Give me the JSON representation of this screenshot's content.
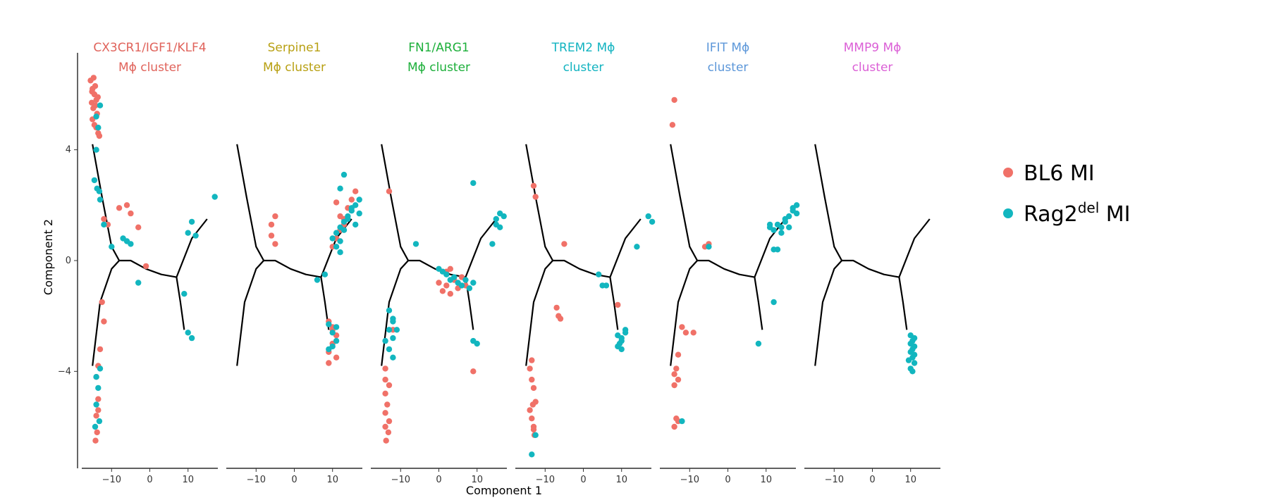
{
  "chart_data": {
    "type": "scatter",
    "xlabel": "Component 1",
    "ylabel": "Component 2",
    "xlim": [
      -18,
      18
    ],
    "ylim": [
      -7.5,
      7.5
    ],
    "x_ticks": [
      -10,
      0,
      10
    ],
    "x_tick_labels": [
      "−10",
      "0",
      "10"
    ],
    "y_ticks": [
      -4,
      0,
      4
    ],
    "y_tick_labels": [
      "−4",
      "0",
      "4"
    ],
    "grid": false,
    "legend_position": "right",
    "legend": [
      {
        "base": "BL6 MI",
        "sup": "",
        "tail": "",
        "color": "#F07168"
      },
      {
        "base": "Rag2",
        "sup": "del",
        "tail": " MI",
        "color": "#12B6BF"
      }
    ],
    "trajectory": [
      [
        [
          -15,
          4.2
        ],
        [
          -12.5,
          2.3
        ],
        [
          -10,
          0.5
        ],
        [
          -8,
          0
        ]
      ],
      [
        [
          -15,
          -3.8
        ],
        [
          -13,
          -1.5
        ],
        [
          -10,
          -0.3
        ],
        [
          -8,
          0
        ]
      ],
      [
        [
          -8,
          0
        ],
        [
          -5,
          0
        ],
        [
          -1,
          -0.3
        ],
        [
          3,
          -0.5
        ],
        [
          7,
          -0.6
        ]
      ],
      [
        [
          7,
          -0.6
        ],
        [
          11,
          0.8
        ],
        [
          15,
          1.5
        ]
      ],
      [
        [
          7,
          -0.6
        ],
        [
          8,
          -1.5
        ],
        [
          9,
          -2.5
        ]
      ]
    ],
    "panels": [
      {
        "title": [
          "CX3CR1/IGF1/KLF4",
          "Mϕ cluster"
        ],
        "color": "#E0635B",
        "series": [
          {
            "name": "BL6 MI",
            "x": [
              -15.5,
              -15,
              -14.5,
              -14,
              -15.2,
              -14.8,
              -14.2,
              -13.8,
              -15,
              -14.5,
              -13.5,
              -14,
              -13.2,
              -15.1,
              -14.3,
              -13.6,
              -14.7,
              -12,
              -11,
              -8,
              -6,
              -5,
              -3,
              -1,
              -12.5,
              -12,
              -13,
              -13.5,
              -14,
              -13.5,
              -14,
              -13.8,
              -14.2,
              -13.5
            ],
            "y": [
              6.5,
              6.2,
              6,
              5.8,
              5.7,
              5.5,
              5.6,
              5.3,
              5.1,
              4.9,
              4.6,
              4.8,
              4.5,
              6.1,
              6.3,
              5.9,
              6.6,
              1.5,
              1.3,
              1.9,
              2.0,
              1.7,
              1.2,
              -0.2,
              -1.5,
              -2.2,
              -3.2,
              -3.8,
              -4.2,
              -5.0,
              -5.6,
              -6.2,
              -6.5,
              -5.4
            ]
          },
          {
            "name": "Rag2del MI",
            "x": [
              -14,
              -13.5,
              -13,
              -14,
              -13.8,
              -13,
              -14.5,
              -13.2,
              -12,
              -10,
              -7,
              -6,
              -5,
              -3,
              10,
              11,
              12,
              17,
              9,
              10,
              11,
              -13,
              -14,
              -13.5,
              -14,
              -13.2,
              -14.3
            ],
            "y": [
              5.2,
              4.8,
              5.6,
              4.0,
              2.6,
              2.2,
              2.9,
              2.5,
              1.3,
              0.5,
              0.8,
              0.7,
              0.6,
              -0.8,
              1.0,
              1.4,
              0.9,
              2.3,
              -1.2,
              -2.6,
              -2.8,
              -3.9,
              -4.2,
              -4.6,
              -5.2,
              -5.8,
              -6.0
            ]
          }
        ]
      },
      {
        "title": [
          "Serpine1",
          "Mϕ cluster"
        ],
        "color": "#B8A013",
        "series": [
          {
            "name": "BL6 MI",
            "x": [
              -6,
              -5,
              -6,
              -5,
              10,
              11,
              12,
              13,
              14,
              15,
              16,
              11,
              12,
              13,
              9,
              10,
              11,
              10,
              9,
              11,
              10,
              9
            ],
            "y": [
              1.3,
              1.6,
              0.9,
              0.6,
              0.5,
              0.8,
              1.1,
              1.5,
              1.9,
              2.2,
              2.5,
              2.1,
              1.6,
              1.3,
              -2.2,
              -2.5,
              -2.7,
              -3,
              -3.3,
              -3.5,
              -2.4,
              -3.7
            ]
          },
          {
            "name": "Rag2del MI",
            "x": [
              10,
              11,
              12,
              13,
              14,
              15,
              16,
              17,
              11,
              12,
              13,
              14,
              15,
              16,
              17,
              12,
              13,
              9,
              10,
              11,
              10,
              9,
              11,
              6,
              8,
              12
            ],
            "y": [
              0.8,
              1.0,
              1.2,
              1.4,
              1.6,
              1.8,
              2.0,
              2.2,
              0.5,
              0.7,
              1.1,
              1.5,
              1.9,
              1.3,
              1.7,
              2.6,
              3.1,
              -2.3,
              -2.6,
              -2.9,
              -3.1,
              -3.2,
              -2.4,
              -0.7,
              -0.5,
              0.3
            ]
          }
        ]
      },
      {
        "title": [
          "FN1/ARG1",
          "Mϕ cluster"
        ],
        "color": "#1CAF3A",
        "series": [
          {
            "name": "BL6 MI",
            "x": [
              -13,
              -14,
              -13,
              -14,
              -13.5,
              -14,
              -13,
              -14,
              -13.2,
              -13.8,
              -12,
              -14,
              0,
              1,
              2,
              3,
              4,
              5,
              6,
              7,
              2,
              3,
              9
            ],
            "y": [
              2.5,
              -4.3,
              -4.5,
              -4.8,
              -5.2,
              -5.5,
              -5.8,
              -6.0,
              -6.2,
              -6.5,
              -2.5,
              -3.9,
              -0.8,
              -1.1,
              -0.9,
              -1.2,
              -0.7,
              -1.0,
              -0.6,
              -0.9,
              -0.4,
              -0.3,
              -4
            ]
          },
          {
            "name": "Rag2del MI",
            "x": [
              -13,
              -12,
              -11,
              -12,
              -13,
              -14,
              -13,
              -12,
              -6,
              0,
              2,
              3,
              4,
              5,
              6,
              7,
              8,
              9,
              1,
              15,
              16,
              17,
              16,
              15,
              14,
              9,
              10,
              9,
              -12
            ],
            "y": [
              -1.8,
              -2.1,
              -2.5,
              -2.8,
              -3.2,
              -2.9,
              -2.5,
              -2.2,
              0.6,
              -0.3,
              -0.5,
              -0.7,
              -0.6,
              -0.8,
              -0.9,
              -0.7,
              -1.0,
              -0.8,
              -0.4,
              1.5,
              1.7,
              1.6,
              1.2,
              1.3,
              0.6,
              2.8,
              -3.0,
              -2.9,
              -3.5
            ]
          }
        ]
      },
      {
        "title": [
          "TREM2 Mϕ",
          "cluster"
        ],
        "color": "#12B3C0",
        "series": [
          {
            "name": "BL6 MI",
            "x": [
              -13,
              -12.5,
              -13.5,
              -13,
              -12.5,
              -14,
              -13.5,
              -13,
              -12.8,
              -14,
              -13.5,
              -13,
              -7,
              -6,
              -6.5,
              -13.2,
              -5,
              9
            ],
            "y": [
              2.7,
              2.3,
              -4.3,
              -4.6,
              -5.1,
              -5.4,
              -5.7,
              -6.0,
              -6.3,
              -3.9,
              -3.6,
              -6.1,
              -1.7,
              -2.1,
              -2.0,
              -5.2,
              0.6,
              -1.6
            ]
          },
          {
            "name": "Rag2del MI",
            "x": [
              -13.5,
              -12.5,
              4,
              5,
              6,
              9,
              10,
              11,
              10,
              9,
              11,
              10,
              14,
              17,
              18,
              9.5
            ],
            "y": [
              -7.0,
              -6.3,
              -0.5,
              -0.9,
              -0.9,
              -2.7,
              -2.9,
              -2.6,
              -3.2,
              -3.1,
              -2.5,
              -2.8,
              0.5,
              1.6,
              1.4,
              -3.0
            ]
          }
        ]
      },
      {
        "title": [
          "IFIT Mϕ",
          "cluster"
        ],
        "color": "#5C97D9",
        "series": [
          {
            "name": "BL6 MI",
            "x": [
              -14,
              -14.5,
              -12,
              -11,
              -13,
              -13.5,
              -14,
              -13,
              -14,
              -13.5,
              -14,
              -13,
              -9,
              -6,
              -5
            ],
            "y": [
              5.8,
              4.9,
              -2.4,
              -2.6,
              -3.4,
              -3.9,
              -4.1,
              -4.3,
              -4.5,
              -5.7,
              -6.0,
              -5.8,
              -2.6,
              0.5,
              0.6
            ]
          },
          {
            "name": "Rag2del MI",
            "x": [
              -5,
              11,
              12,
              13,
              14,
              15,
              16,
              17,
              18,
              12,
              13,
              11,
              14,
              15,
              16,
              17,
              18,
              8,
              12,
              -12
            ],
            "y": [
              0.5,
              1.2,
              1.1,
              1.3,
              1.2,
              1.4,
              1.6,
              1.8,
              2.0,
              0.4,
              0.4,
              1.3,
              1.0,
              1.5,
              1.2,
              1.9,
              1.7,
              -3.0,
              -1.5,
              -5.8
            ]
          }
        ]
      },
      {
        "title": [
          "MMP9 Mϕ",
          "cluster"
        ],
        "color": "#DB5FD6",
        "series": [
          {
            "name": "BL6 MI",
            "x": [],
            "y": []
          },
          {
            "name": "Rag2del MI",
            "x": [
              10,
              10.5,
              11,
              10,
              10.5,
              11,
              10,
              10.5,
              11,
              10,
              9.5,
              10.5,
              11
            ],
            "y": [
              -2.7,
              -2.9,
              -3.1,
              -3.3,
              -3.5,
              -3.7,
              -3.9,
              -4.0,
              -2.8,
              -3.0,
              -3.6,
              -3.2,
              -3.4
            ]
          }
        ]
      }
    ]
  }
}
